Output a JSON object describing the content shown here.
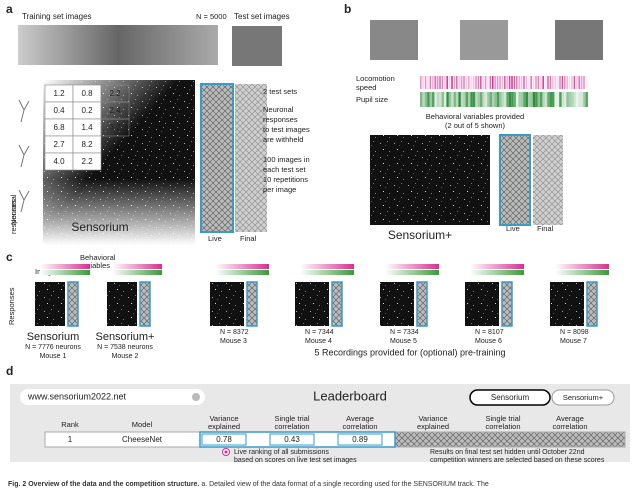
{
  "panel_a": {
    "label": "a",
    "training_images": "Training set images",
    "n": "N = 5000",
    "test_images": "Test set images",
    "matrix": [
      [
        "1.2",
        "0.8",
        "2.2"
      ],
      [
        "0.4",
        "0.2",
        "2.4"
      ],
      [
        "6.8",
        "1.4",
        "3.2"
      ],
      [
        "2.7",
        "8.2"
      ],
      [
        "4.0",
        "2.2"
      ]
    ],
    "responses": [
      "Neuronal",
      "responses"
    ],
    "track": "Sensorium",
    "live": "Live",
    "final": "Final",
    "test_sets": "2 test sets",
    "withheld": [
      "Neuronal",
      "responses",
      "to test images",
      "are withheld"
    ],
    "repeats": [
      "100 images in",
      "each test set",
      "10 repetitions",
      "per image"
    ]
  },
  "panel_b": {
    "label": "b",
    "locomotion": [
      "Locomotion",
      "speed"
    ],
    "pupil": "Pupil size",
    "behavior": [
      "Behavioral variables provided",
      "(2 out of 5 shown)"
    ],
    "track": "Sensorium+",
    "live": "Live",
    "final": "Final"
  },
  "panel_c": {
    "label": "c",
    "images": "Images",
    "behavior": [
      "Behavioral",
      "variables"
    ],
    "responses": "Responses",
    "main": [
      {
        "track": "Sensorium",
        "neurons": "N = 7776 neurons",
        "mouse": "Mouse 1"
      },
      {
        "track": "Sensorium+",
        "neurons": "N = 7538 neurons",
        "mouse": "Mouse 2"
      }
    ],
    "pretrain": [
      {
        "neurons": "N = 8372",
        "mouse": "Mouse 3"
      },
      {
        "neurons": "N = 7344",
        "mouse": "Mouse 4"
      },
      {
        "neurons": "N = 7334",
        "mouse": "Mouse 5"
      },
      {
        "neurons": "N = 8107",
        "mouse": "Mouse 6"
      },
      {
        "neurons": "N = 8098",
        "mouse": "Mouse 7"
      }
    ],
    "pretrain_note": "5 Recordings provided for (optional) pre-training"
  },
  "panel_d": {
    "label": "d",
    "url": "www.sensorium2022.net",
    "title": "Leaderboard",
    "tabs": [
      "Sensorium",
      "Sensorium+"
    ],
    "headers": [
      [
        "Rank"
      ],
      [
        "Model"
      ],
      [
        "Variance",
        "explained"
      ],
      [
        "Single trial",
        "correlation"
      ],
      [
        "Average",
        "correlation"
      ],
      [
        "Variance",
        "explained"
      ],
      [
        "Single trial",
        "correlation"
      ],
      [
        "Average",
        "correlation"
      ]
    ],
    "row": [
      "1",
      "CheeseNet",
      "0.78",
      "0.43",
      "0.89"
    ],
    "live_note": [
      "Live ranking of all submissions",
      "based on scores on live test set images"
    ],
    "final_note": [
      "Results on final test set hidden until October 22nd",
      "competition winners are selected based on these scores"
    ]
  },
  "caption": {
    "label": "Fig. 2",
    "title": "Overview of the data and the competition structure.",
    "text": "a. Detailed view of the data format of a single recording used for the SENSORIUM track. The"
  }
}
